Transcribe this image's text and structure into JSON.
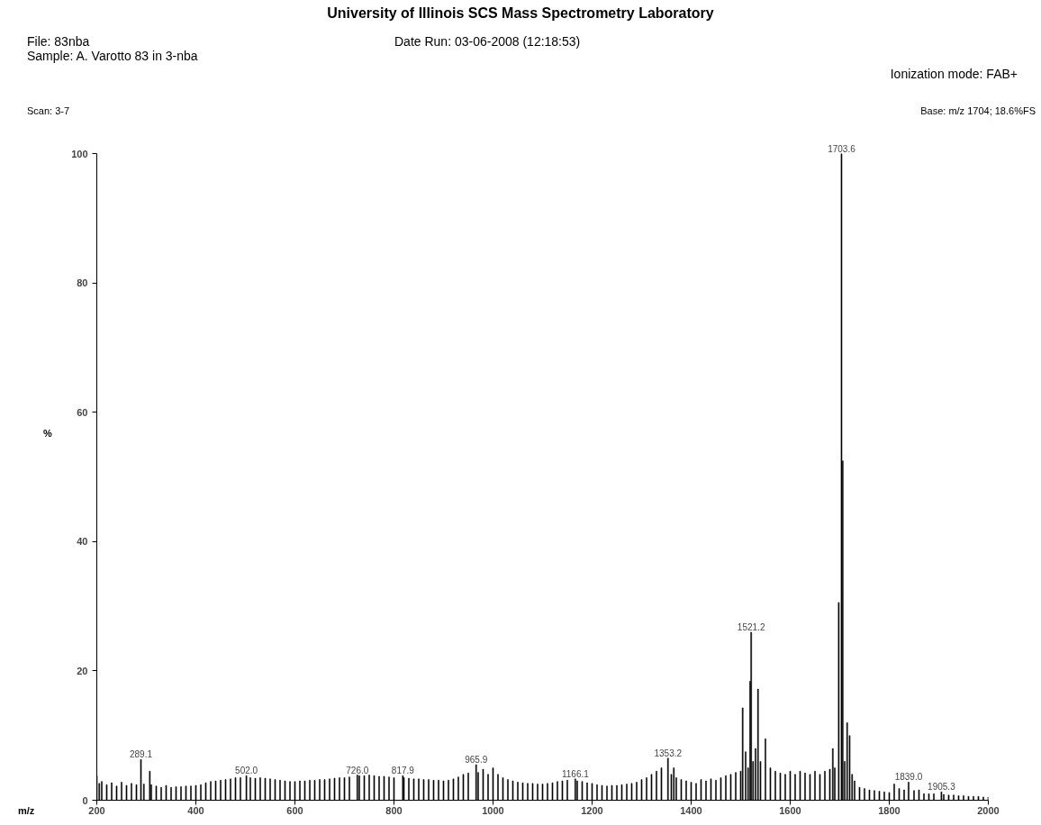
{
  "chart_data": {
    "type": "bar",
    "title": "University of Illinois SCS Mass Spectrometry Laboratory",
    "xlabel": "m/z",
    "ylabel": "%",
    "annotations": [
      "File: 83nba",
      "Sample: A. Varotto 83 in 3-nba",
      "Date Run: 03-06-2008 (12:18:53)",
      "Ionization mode: FAB+",
      "Scan: 3-7",
      "Base: m/z 1704; 18.6%FS",
      {
        "text": "289.1",
        "x": 289.1,
        "y": 6.3
      },
      {
        "text": "502.0",
        "x": 502.0,
        "y": 3.8
      },
      {
        "text": "726.0",
        "x": 726.0,
        "y": 3.9
      },
      {
        "text": "817.9",
        "x": 817.9,
        "y": 3.8
      },
      {
        "text": "965.9",
        "x": 965.9,
        "y": 5.5
      },
      {
        "text": "1166.1",
        "x": 1166.1,
        "y": 3.3
      },
      {
        "text": "1353.2",
        "x": 1353.2,
        "y": 6.5
      },
      {
        "text": "1521.2",
        "x": 1521.2,
        "y": 26.0
      },
      {
        "text": "1703.6",
        "x": 1703.6,
        "y": 100
      },
      {
        "text": "1839.0",
        "x": 1839.0,
        "y": 2.8
      },
      {
        "text": "1905.3",
        "x": 1905.3,
        "y": 1.3
      }
    ],
    "x": [
      200,
      205,
      210,
      220,
      230,
      240,
      250,
      260,
      270,
      280,
      289.1,
      295,
      307,
      310,
      320,
      330,
      340,
      350,
      360,
      370,
      380,
      390,
      400,
      410,
      420,
      430,
      440,
      450,
      460,
      470,
      480,
      490,
      502.0,
      510,
      520,
      530,
      540,
      550,
      560,
      570,
      580,
      590,
      600,
      610,
      620,
      630,
      640,
      650,
      660,
      670,
      680,
      690,
      700,
      710,
      726.0,
      730,
      740,
      750,
      760,
      770,
      780,
      790,
      800,
      817.9,
      820,
      830,
      840,
      850,
      860,
      870,
      880,
      890,
      900,
      910,
      920,
      930,
      940,
      950,
      965.9,
      970,
      980,
      990,
      1000,
      1010,
      1020,
      1030,
      1040,
      1050,
      1060,
      1070,
      1080,
      1090,
      1100,
      1110,
      1120,
      1130,
      1140,
      1150,
      1166.1,
      1170,
      1180,
      1190,
      1200,
      1210,
      1220,
      1230,
      1240,
      1250,
      1260,
      1270,
      1280,
      1290,
      1300,
      1310,
      1320,
      1330,
      1340,
      1353.2,
      1360,
      1365,
      1370,
      1380,
      1390,
      1400,
      1410,
      1420,
      1430,
      1440,
      1450,
      1460,
      1470,
      1480,
      1490,
      1500,
      1504,
      1510,
      1515,
      1519,
      1521.2,
      1525,
      1530,
      1535,
      1540,
      1550,
      1560,
      1570,
      1580,
      1590,
      1600,
      1610,
      1620,
      1630,
      1640,
      1650,
      1660,
      1670,
      1680,
      1686,
      1690,
      1698,
      1703.6,
      1706,
      1710,
      1715,
      1720,
      1725,
      1730,
      1740,
      1750,
      1760,
      1770,
      1780,
      1790,
      1800,
      1810,
      1820,
      1830,
      1839.0,
      1850,
      1860,
      1870,
      1880,
      1890,
      1905.3,
      1910,
      1920,
      1930,
      1940,
      1950,
      1960,
      1970,
      1980,
      1990,
      2000
    ],
    "values": [
      3.8,
      2.6,
      2.9,
      2.4,
      2.7,
      2.2,
      2.8,
      2.3,
      2.6,
      2.4,
      6.3,
      2.5,
      4.5,
      2.4,
      2.2,
      2.0,
      2.3,
      2.0,
      2.1,
      2.1,
      2.2,
      2.2,
      2.3,
      2.4,
      2.7,
      2.9,
      3.0,
      3.1,
      3.2,
      3.3,
      3.5,
      3.5,
      3.8,
      3.5,
      3.4,
      3.5,
      3.4,
      3.3,
      3.2,
      3.1,
      3.0,
      2.9,
      2.9,
      3.0,
      3.0,
      3.1,
      3.1,
      3.2,
      3.2,
      3.3,
      3.4,
      3.5,
      3.5,
      3.6,
      3.9,
      3.8,
      3.8,
      3.9,
      3.8,
      3.7,
      3.7,
      3.6,
      3.5,
      3.8,
      3.5,
      3.4,
      3.3,
      3.3,
      3.2,
      3.2,
      3.1,
      3.1,
      3.0,
      3.1,
      3.3,
      3.6,
      4.0,
      4.2,
      5.5,
      4.3,
      4.8,
      4.0,
      5.0,
      4.0,
      3.5,
      3.2,
      3.0,
      2.8,
      2.7,
      2.6,
      2.6,
      2.5,
      2.5,
      2.6,
      2.7,
      2.9,
      3.0,
      3.1,
      3.3,
      3.0,
      2.9,
      2.7,
      2.6,
      2.4,
      2.3,
      2.2,
      2.3,
      2.3,
      2.4,
      2.5,
      2.6,
      2.8,
      3.2,
      3.5,
      4.0,
      4.5,
      5.0,
      6.5,
      4.0,
      5.0,
      3.5,
      3.2,
      3.0,
      2.8,
      2.6,
      3.2,
      3.0,
      3.3,
      3.1,
      3.5,
      3.8,
      4.0,
      4.3,
      4.5,
      14.3,
      7.5,
      5.0,
      18.4,
      26.0,
      6.0,
      8.0,
      17.2,
      6.0,
      9.5,
      5.0,
      4.5,
      4.2,
      4.0,
      4.5,
      4.0,
      4.5,
      4.2,
      4.0,
      4.5,
      4.0,
      4.5,
      4.8,
      8.0,
      5.0,
      30.6,
      100,
      52.5,
      6.0,
      12.0,
      10.0,
      4.0,
      3.0,
      2.0,
      1.8,
      1.6,
      1.5,
      1.4,
      1.3,
      1.2,
      2.5,
      1.8,
      1.6,
      2.8,
      1.5,
      1.6,
      1.0,
      1.0,
      1.0,
      1.3,
      0.9,
      0.8,
      0.8,
      0.7,
      0.7,
      0.6,
      0.6,
      0.6,
      0.5,
      0.5
    ],
    "color": "#000000",
    "xlim": [
      200,
      2000
    ],
    "ylim": [
      0,
      100
    ],
    "xticks": [
      200,
      400,
      600,
      800,
      1000,
      1200,
      1400,
      1600,
      1800,
      2000
    ],
    "yticks": [
      0,
      20,
      40,
      60,
      80,
      100
    ],
    "grid": false
  }
}
